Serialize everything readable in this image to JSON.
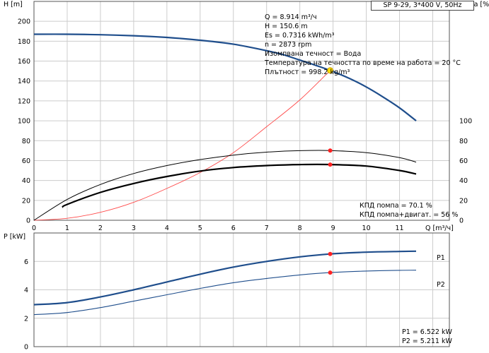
{
  "model_label": "SP 9-29, 3*400 V, 50Hz",
  "info_lines": [
    "Q = 8.914 m³/ч",
    "H = 150.6 m",
    "Es = 0.7316 kWh/m³",
    "n = 2873 rpm",
    "Изомпвана течност = Вода",
    "Температура на течността по време на работа = 20 °C",
    "Плътност = 998.2 kg/m³"
  ],
  "efficiency_notes": [
    "КПД помпа = 70.1 %",
    "КПД помпа+двигат. = 56 %"
  ],
  "power_notes": [
    "P1 = 6.522 kW",
    "P2 = 5.211 kW"
  ],
  "colors": {
    "head": "#1f4e8c",
    "p1": "#1f4e8c",
    "p2": "#1f4e8c",
    "system": "#ff4a4a",
    "eta": "#000000",
    "grid": "#cccccc",
    "point": "#ff2222",
    "duty": "#ffdd00"
  },
  "chart_data": [
    {
      "type": "line",
      "xlabel": "Q [m³/ч]",
      "ylabel": "H [m]",
      "y2label": "eta [%]",
      "xlim": [
        0,
        12.5
      ],
      "ylim": [
        0,
        220
      ],
      "y2lim": [
        0,
        220
      ],
      "x_ticks": [
        0,
        1,
        2,
        3,
        4,
        5,
        6,
        7,
        8,
        9,
        10,
        11
      ],
      "y_ticks": [
        0,
        20,
        40,
        60,
        80,
        100,
        120,
        140,
        160,
        180,
        200
      ],
      "y2_ticks": [
        0,
        20,
        40,
        60,
        80,
        100
      ],
      "grid": true,
      "series": [
        {
          "key": "head",
          "axis": "y",
          "x": [
            0,
            1,
            2,
            3,
            4,
            5,
            6,
            7,
            7.5,
            8,
            8.5,
            8.914,
            9.5,
            10,
            10.5,
            11,
            11.5
          ],
          "y": [
            187,
            187,
            186.5,
            185.5,
            183.8,
            181,
            177,
            170.5,
            166.5,
            161,
            155.5,
            150.6,
            142.5,
            134,
            124,
            113,
            100
          ]
        },
        {
          "key": "system",
          "axis": "y",
          "x": [
            0,
            1,
            2,
            3,
            4,
            5,
            6,
            7,
            8,
            8.914
          ],
          "y": [
            0,
            2,
            8,
            18,
            32,
            48,
            68,
            94,
            121,
            150.6
          ]
        },
        {
          "key": "eta_pump",
          "axis": "y2",
          "x": [
            0,
            1,
            2,
            3,
            4,
            5,
            6,
            7,
            8,
            8.914,
            10,
            11,
            11.5
          ],
          "y": [
            0,
            21,
            36,
            47,
            55,
            61,
            65.5,
            68.5,
            70,
            70.1,
            68,
            63,
            58.5
          ]
        },
        {
          "key": "eta_total",
          "axis": "y2",
          "x": [
            0.85,
            1,
            2,
            3,
            4,
            5,
            6,
            7,
            8,
            8.914,
            10,
            11,
            11.5
          ],
          "y": [
            13,
            16,
            28,
            37,
            44,
            49.5,
            53,
            55,
            56,
            56,
            54.5,
            50,
            46.5
          ]
        }
      ],
      "duty_point": {
        "x": 8.914,
        "head": 150.6,
        "eta_pump": 70.1,
        "eta_total": 56
      }
    },
    {
      "type": "line",
      "ylabel": "P [kW]",
      "xlim": [
        0,
        12.5
      ],
      "ylim": [
        0,
        8
      ],
      "y_ticks": [
        0,
        2,
        4,
        6
      ],
      "grid": true,
      "series": [
        {
          "name": "P1",
          "key": "p1",
          "x": [
            0,
            1,
            2,
            3,
            4,
            5,
            6,
            7,
            8,
            8.914,
            10,
            11,
            11.5
          ],
          "y": [
            2.95,
            3.1,
            3.5,
            4.0,
            4.55,
            5.1,
            5.6,
            6.0,
            6.32,
            6.522,
            6.65,
            6.7,
            6.72
          ]
        },
        {
          "name": "P2",
          "key": "p2",
          "x": [
            0,
            1,
            2,
            3,
            4,
            5,
            6,
            7,
            8,
            8.914,
            10,
            11,
            11.5
          ],
          "y": [
            2.25,
            2.4,
            2.75,
            3.2,
            3.65,
            4.1,
            4.5,
            4.8,
            5.05,
            5.211,
            5.32,
            5.37,
            5.38
          ]
        }
      ],
      "duty_point": {
        "x": 8.914,
        "p1": 6.522,
        "p2": 5.211
      }
    }
  ]
}
